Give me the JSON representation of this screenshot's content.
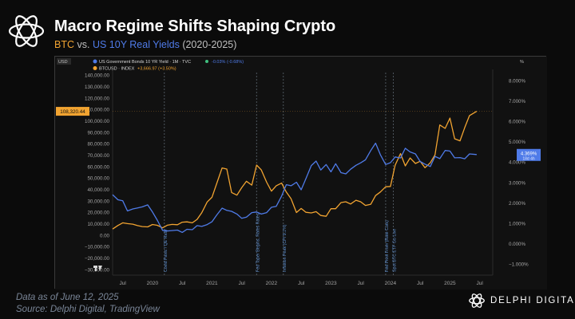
{
  "header": {
    "title": "Macro Regime Shifts Shaping Crypto",
    "subtitle_btc": "BTC",
    "subtitle_vs": "vs.",
    "subtitle_us": "US 10Y Real Yields",
    "subtitle_range": "(2020-2025)"
  },
  "footer": {
    "date_note": "Data as of June 12, 2025",
    "source": "Source: Delphi Digital, TradingView",
    "brand": "DELPHI DIGITAL"
  },
  "colors": {
    "btc": "#f2a431",
    "yield": "#4f7be8",
    "accent_text": "#7a8698"
  },
  "chart_data": {
    "type": "line",
    "legend": {
      "usd_tag": "USD",
      "pct_tag": "%",
      "yield_label": "US Government Bonds 10 YR Yield · 1M · TVC",
      "yield_change": "-0.03% (-0.68%)",
      "btc_label": "BTCUSD · INDEX",
      "btc_change": "+3,666.97 (+3.50%)"
    },
    "left_axis": {
      "range": [
        -35000,
        145000
      ],
      "ticks": [
        -30000,
        -20000,
        -10000,
        0,
        10000,
        20000,
        30000,
        40000,
        50000,
        60000,
        70000,
        80000,
        90000,
        100000,
        110000,
        120000,
        130000,
        140000
      ],
      "tick_labels": [
        "−30,000.00",
        "−20,000.00",
        "−10,000.00",
        "0.00",
        "10,000.00",
        "20,000.00",
        "30,000.00",
        "40,000.00",
        "50,000.00",
        "60,000.00",
        "70,000.00",
        "80,000.00",
        "90,000.00",
        "100,000.00",
        "110,000.00",
        "120,000.00",
        "130,000.00",
        "140,000.00"
      ]
    },
    "right_axis": {
      "range": [
        -1.55,
        8.55
      ],
      "ticks": [
        -1,
        0,
        1,
        2,
        3,
        4,
        5,
        6,
        7,
        8
      ],
      "tick_labels": [
        "−1.000%",
        "0.000%",
        "1.000%",
        "2.000%",
        "3.000%",
        "4.000%",
        "5.000%",
        "6.000%",
        "7.000%",
        "8.000%"
      ]
    },
    "x_axis": {
      "range": [
        2019.33,
        2025.72
      ],
      "ticks": [
        2019.5,
        2020.0,
        2020.5,
        2021.0,
        2021.5,
        2022.0,
        2022.5,
        2023.0,
        2023.5,
        2024.0,
        2024.5,
        2025.0,
        2025.5
      ],
      "tick_labels": [
        "Jul",
        "2020",
        "Jul",
        "2021",
        "Jul",
        "2022",
        "Jul",
        "2023",
        "Jul",
        "2024",
        "Jul",
        "2025",
        "Jul"
      ]
    },
    "events": [
      {
        "x": 2020.2,
        "label": "Covid Panic / QE Rally"
      },
      {
        "x": 2021.75,
        "label": "Fed Taper Begins, Rates Rates"
      },
      {
        "x": 2022.2,
        "label": "Inflation Peak (CPI 9.1%)"
      },
      {
        "x": 2023.92,
        "label": "Fed Pivot From (Rate Cuts)"
      },
      {
        "x": 2024.05,
        "label": "Spot BTC ETF Go Live"
      }
    ],
    "series": [
      {
        "name": "BTCUSD",
        "axis": "left",
        "x": [
          2019.33,
          2019.42,
          2019.5,
          2019.58,
          2019.67,
          2019.75,
          2019.83,
          2019.92,
          2020.0,
          2020.08,
          2020.17,
          2020.25,
          2020.33,
          2020.42,
          2020.5,
          2020.58,
          2020.67,
          2020.75,
          2020.83,
          2020.92,
          2021.0,
          2021.08,
          2021.17,
          2021.25,
          2021.33,
          2021.42,
          2021.5,
          2021.58,
          2021.67,
          2021.75,
          2021.83,
          2021.92,
          2022.0,
          2022.08,
          2022.17,
          2022.25,
          2022.33,
          2022.42,
          2022.5,
          2022.58,
          2022.67,
          2022.75,
          2022.83,
          2022.92,
          2023.0,
          2023.08,
          2023.17,
          2023.25,
          2023.33,
          2023.42,
          2023.5,
          2023.58,
          2023.67,
          2023.75,
          2023.83,
          2023.92,
          2024.0,
          2024.08,
          2024.17,
          2024.25,
          2024.33,
          2024.42,
          2024.5,
          2024.58,
          2024.67,
          2024.75,
          2024.83,
          2024.92,
          2025.0,
          2025.08,
          2025.17,
          2025.25,
          2025.33,
          2025.45
        ],
        "values": [
          5300,
          8500,
          10800,
          10100,
          9600,
          8300,
          7500,
          7200,
          9300,
          8600,
          6400,
          8700,
          9400,
          9100,
          11300,
          11600,
          10800,
          13800,
          19700,
          29000,
          33100,
          45200,
          58800,
          57800,
          37300,
          35000,
          41500,
          47100,
          43800,
          61300,
          57000,
          46300,
          38500,
          43200,
          45500,
          37700,
          31800,
          19800,
          23300,
          20000,
          19400,
          20500,
          17200,
          16500,
          23100,
          23100,
          28500,
          29200,
          27200,
          30500,
          29200,
          26000,
          27000,
          34600,
          37700,
          42300,
          42600,
          61200,
          71300,
          60600,
          67500,
          62700,
          64600,
          59000,
          63300,
          70200,
          96400,
          93400,
          102400,
          84300,
          82500,
          94200,
          104600,
          108320
        ]
      },
      {
        "name": "US 10Y Yield",
        "axis": "right",
        "x": [
          2019.33,
          2019.42,
          2019.5,
          2019.58,
          2019.67,
          2019.75,
          2019.83,
          2019.92,
          2020.0,
          2020.08,
          2020.17,
          2020.25,
          2020.33,
          2020.42,
          2020.5,
          2020.58,
          2020.67,
          2020.75,
          2020.83,
          2020.92,
          2021.0,
          2021.08,
          2021.17,
          2021.25,
          2021.33,
          2021.42,
          2021.5,
          2021.58,
          2021.67,
          2021.75,
          2021.83,
          2021.92,
          2022.0,
          2022.08,
          2022.17,
          2022.25,
          2022.33,
          2022.42,
          2022.5,
          2022.58,
          2022.67,
          2022.75,
          2022.83,
          2022.92,
          2023.0,
          2023.08,
          2023.17,
          2023.25,
          2023.33,
          2023.42,
          2023.5,
          2023.58,
          2023.67,
          2023.75,
          2023.83,
          2023.92,
          2024.0,
          2024.08,
          2024.17,
          2024.25,
          2024.33,
          2024.42,
          2024.5,
          2024.58,
          2024.67,
          2024.75,
          2024.83,
          2024.92,
          2025.0,
          2025.08,
          2025.17,
          2025.25,
          2025.33,
          2025.45
        ],
        "values": [
          2.4,
          2.15,
          2.1,
          1.6,
          1.7,
          1.75,
          1.8,
          1.9,
          1.55,
          1.15,
          0.65,
          0.62,
          0.64,
          0.66,
          0.55,
          0.7,
          0.68,
          0.88,
          0.84,
          0.93,
          1.07,
          1.4,
          1.74,
          1.63,
          1.58,
          1.45,
          1.24,
          1.3,
          1.52,
          1.55,
          1.45,
          1.52,
          1.78,
          1.83,
          2.33,
          2.89,
          2.84,
          3.01,
          2.64,
          3.19,
          3.83,
          4.05,
          3.61,
          3.88,
          3.52,
          3.92,
          3.48,
          3.42,
          3.65,
          3.84,
          3.96,
          4.11,
          4.57,
          4.93,
          4.37,
          3.88,
          3.97,
          4.25,
          4.2,
          4.68,
          4.5,
          4.4,
          4.03,
          3.9,
          3.78,
          4.28,
          4.17,
          4.57,
          4.54,
          4.21,
          4.22,
          4.16,
          4.4,
          4.37
        ]
      }
    ],
    "price_tags": {
      "btc": "108,320.44",
      "yield": "4.369%",
      "yield_sub": "18d 4h"
    }
  }
}
